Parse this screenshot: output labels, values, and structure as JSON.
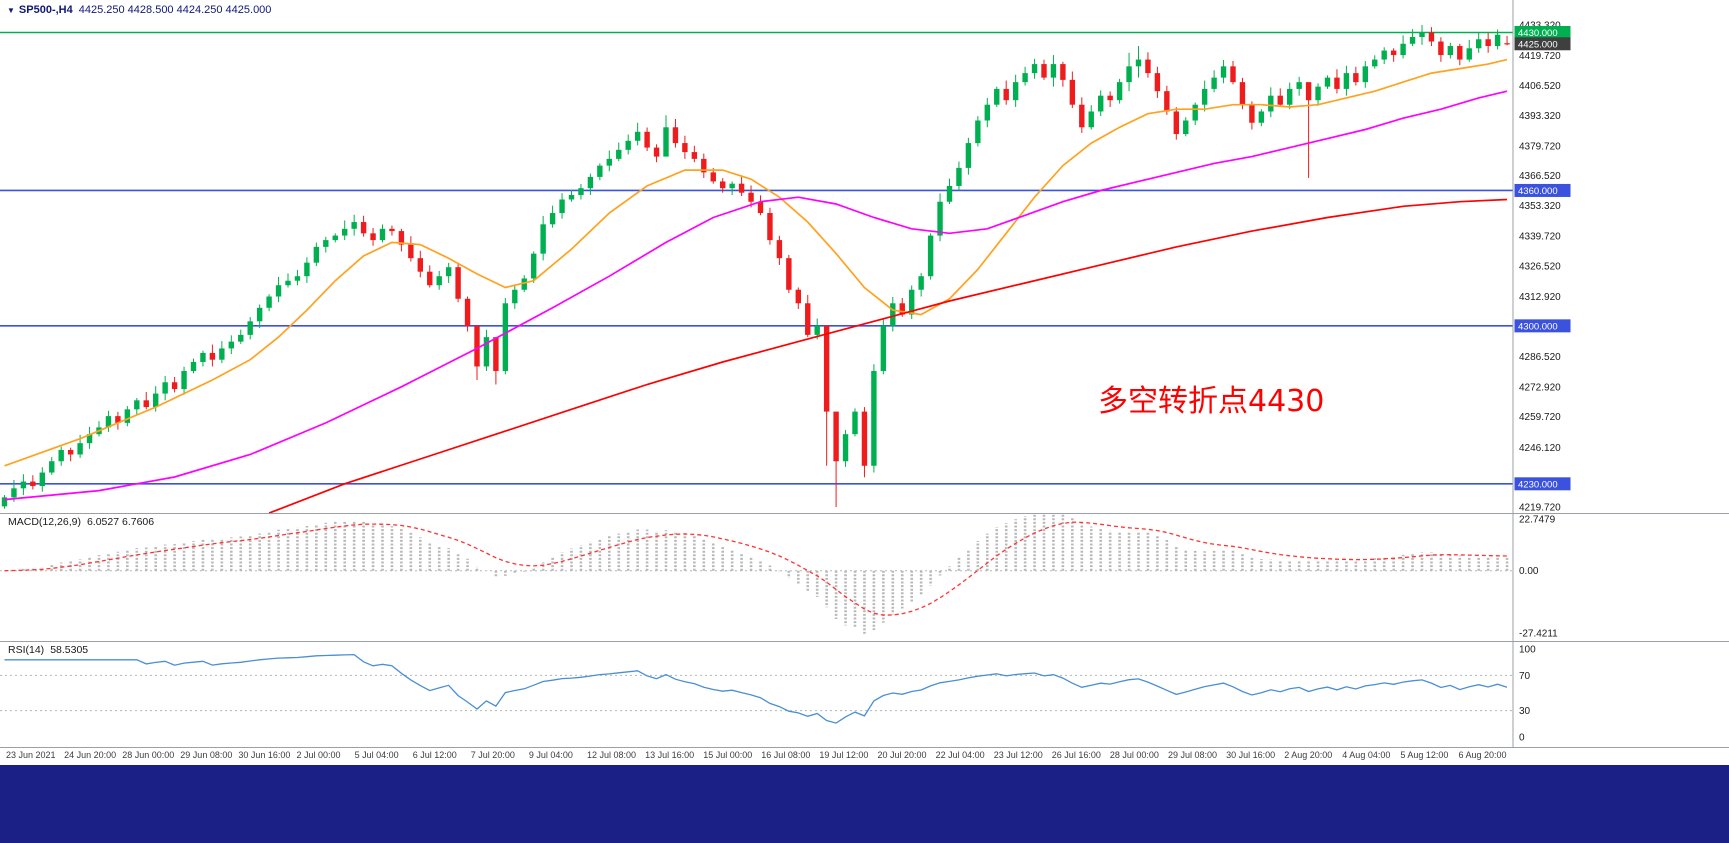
{
  "header": {
    "dropdown_icon": "▼",
    "symbol_period": "SP500-,H4",
    "ohlc": "4425.250 4428.500 4424.250 4425.000"
  },
  "indicators": {
    "macd_label": "MACD(12,26,9)",
    "macd_values": "6.0527 6.7606",
    "rsi_label": "RSI(14)",
    "rsi_value": "58.5305"
  },
  "annotation": {
    "text": "多空转折点4430",
    "color": "#ff0000"
  },
  "colors": {
    "up_candle": "#00b050",
    "down_candle": "#ee1c1c",
    "ma_fast": "#ffa21f",
    "ma_mid": "#ff00ff",
    "ma_slow": "#ff0000",
    "hline_blue": "#3a52dd",
    "hline_green": "#00b050",
    "macd_hist": "#b8b8b8",
    "macd_signal": "#ff3333",
    "rsi_line": "#4a8fd4",
    "axis_text": "#1a1a1a",
    "time_text": "#3c3c3c",
    "separator": "#9aa0a6",
    "badge_dark_bg": "#3f3f3f",
    "badge_text": "#ffffff",
    "level_dotted": "#b5b5b5",
    "bottom_bar_bg": "#1b2087"
  },
  "chart_data": {
    "type": "candlestick",
    "symbol": "SP500-",
    "timeframe": "H4",
    "title": "SP500-,H4",
    "first_open": 4220,
    "closes": [
      4224,
      4228,
      4231,
      4229,
      4235,
      4240,
      4245,
      4243,
      4248,
      4252,
      4255,
      4260,
      4257,
      4263,
      4267,
      4264,
      4270,
      4275,
      4272,
      4280,
      4284,
      4288,
      4285,
      4290,
      4293,
      4296,
      4302,
      4308,
      4313,
      4318,
      4320,
      4322,
      4328,
      4335,
      4338,
      4340,
      4343,
      4346,
      4341,
      4338,
      4343,
      4342,
      4336,
      4330,
      4324,
      4318,
      4322,
      4326,
      4312,
      4300,
      4282,
      4295,
      4280,
      4310,
      4316,
      4321,
      4332,
      4345,
      4350,
      4356,
      4358,
      4361,
      4366,
      4371,
      4374,
      4378,
      4382,
      4386,
      4379,
      4375,
      4388,
      4381,
      4377,
      4374,
      4368,
      4364,
      4361,
      4363,
      4359,
      4355,
      4350,
      4338,
      4330,
      4316,
      4310,
      4296,
      4300,
      4262,
      4240,
      4252,
      4262,
      4238,
      4280,
      4300,
      4310,
      4305,
      4316,
      4322,
      4340,
      4355,
      4362,
      4370,
      4381,
      4391,
      4398,
      4405,
      4400,
      4408,
      4412,
      4416,
      4410,
      4416,
      4409,
      4398,
      4388,
      4395,
      4402,
      4400,
      4408,
      4415,
      4418,
      4412,
      4404,
      4395,
      4385,
      4391,
      4398,
      4405,
      4410,
      4415,
      4408,
      4398,
      4390,
      4395,
      4402,
      4398,
      4405,
      4408,
      4400,
      4406,
      4410,
      4405,
      4412,
      4408,
      4415,
      4418,
      4422,
      4420,
      4425,
      4428,
      4430,
      4426,
      4420,
      4424,
      4418,
      4423,
      4427,
      4424,
      4429,
      4425
    ],
    "last_candle": {
      "open": 4425.25,
      "high": 4428.5,
      "low": 4424.25,
      "close": 4425.0
    },
    "wick_overrides": {
      "50": [
        4298,
        4276
      ],
      "52": [
        4292,
        4274
      ],
      "67": [
        4390,
        4380
      ],
      "70": [
        4393.3,
        4378
      ],
      "87": [
        4292,
        4238
      ],
      "88": [
        4256,
        4219.7
      ],
      "91": [
        4264,
        4232.9
      ],
      "92": [
        4283,
        4235
      ],
      "104": [
        4401,
        4388
      ],
      "111": [
        4420,
        4406
      ],
      "119": [
        4421,
        4404
      ],
      "120": [
        4424,
        4410
      ],
      "138": [
        4402,
        4365.5
      ],
      "149": [
        4431.5,
        4424
      ],
      "150": [
        4433.3,
        4424.5
      ]
    },
    "hlines": [
      {
        "price": 4430.0,
        "style": "green"
      },
      {
        "price": 4360.0,
        "style": "blue"
      },
      {
        "price": 4300.0,
        "style": "blue"
      },
      {
        "price": 4230.0,
        "style": "blue"
      }
    ],
    "price_axis": {
      "ticks": [
        "4433.320",
        "4419.720",
        "4406.520",
        "4393.320",
        "4379.720",
        "4366.520",
        "4353.320",
        "4339.720",
        "4326.520",
        "4312.920",
        "4286.520",
        "4272.920",
        "4259.720",
        "4246.120",
        "4219.720"
      ],
      "badges": [
        {
          "text": "4430.000",
          "price": 4430.0,
          "style": "green"
        },
        {
          "text": "4425.000",
          "price": 4425.0,
          "style": "dark"
        },
        {
          "text": "4360.000",
          "price": 4360.0,
          "style": "blue"
        },
        {
          "text": "4300.000",
          "price": 4300.0,
          "style": "blue"
        },
        {
          "text": "4230.000",
          "price": 4230.0,
          "style": "blue"
        }
      ]
    },
    "moving_averages": [
      {
        "name": "ma-fast-orange",
        "color_key": "ma_fast",
        "anchors": [
          [
            0,
            4238
          ],
          [
            8,
            4250
          ],
          [
            16,
            4264
          ],
          [
            22,
            4276
          ],
          [
            26,
            4285
          ],
          [
            29,
            4295
          ],
          [
            32,
            4307
          ],
          [
            35,
            4320
          ],
          [
            38,
            4331
          ],
          [
            41,
            4337
          ],
          [
            44,
            4336
          ],
          [
            47,
            4330
          ],
          [
            50,
            4323
          ],
          [
            53,
            4317
          ],
          [
            56,
            4320
          ],
          [
            60,
            4334
          ],
          [
            64,
            4350
          ],
          [
            68,
            4362
          ],
          [
            72,
            4369
          ],
          [
            76,
            4369
          ],
          [
            79,
            4365
          ],
          [
            82,
            4357
          ],
          [
            85,
            4346
          ],
          [
            88,
            4332
          ],
          [
            91,
            4317
          ],
          [
            94,
            4307
          ],
          [
            97,
            4305
          ],
          [
            100,
            4312
          ],
          [
            103,
            4325
          ],
          [
            106,
            4341
          ],
          [
            109,
            4357
          ],
          [
            112,
            4371
          ],
          [
            115,
            4381
          ],
          [
            118,
            4388
          ],
          [
            121,
            4394
          ],
          [
            124,
            4396
          ],
          [
            127,
            4396
          ],
          [
            130,
            4398
          ],
          [
            133,
            4398
          ],
          [
            136,
            4397
          ],
          [
            139,
            4398
          ],
          [
            142,
            4401
          ],
          [
            145,
            4404
          ],
          [
            148,
            4408
          ],
          [
            151,
            4412
          ],
          [
            154,
            4414
          ],
          [
            157,
            4416
          ],
          [
            159,
            4418
          ]
        ]
      },
      {
        "name": "ma-mid-magenta",
        "color_key": "ma_mid",
        "anchors": [
          [
            0,
            4223
          ],
          [
            10,
            4227
          ],
          [
            18,
            4233
          ],
          [
            26,
            4243
          ],
          [
            34,
            4257
          ],
          [
            42,
            4273
          ],
          [
            50,
            4290
          ],
          [
            58,
            4308
          ],
          [
            64,
            4322
          ],
          [
            70,
            4337
          ],
          [
            75,
            4348
          ],
          [
            80,
            4355
          ],
          [
            84,
            4357
          ],
          [
            88,
            4354
          ],
          [
            92,
            4348
          ],
          [
            96,
            4343
          ],
          [
            100,
            4341
          ],
          [
            104,
            4343
          ],
          [
            108,
            4349
          ],
          [
            112,
            4355
          ],
          [
            116,
            4360
          ],
          [
            120,
            4364
          ],
          [
            124,
            4368
          ],
          [
            128,
            4372
          ],
          [
            132,
            4375
          ],
          [
            136,
            4379
          ],
          [
            140,
            4383
          ],
          [
            144,
            4387
          ],
          [
            148,
            4392
          ],
          [
            152,
            4396
          ],
          [
            156,
            4401
          ],
          [
            159,
            4404
          ]
        ]
      },
      {
        "name": "ma-slow-red",
        "color_key": "ma_slow",
        "anchors": [
          [
            28,
            4217
          ],
          [
            36,
            4230
          ],
          [
            44,
            4241
          ],
          [
            52,
            4252
          ],
          [
            60,
            4263
          ],
          [
            68,
            4274
          ],
          [
            76,
            4284
          ],
          [
            84,
            4293
          ],
          [
            92,
            4302
          ],
          [
            100,
            4311
          ],
          [
            108,
            4319
          ],
          [
            116,
            4327
          ],
          [
            124,
            4335
          ],
          [
            132,
            4342
          ],
          [
            140,
            4348
          ],
          [
            148,
            4353
          ],
          [
            154,
            4355
          ],
          [
            159,
            4356
          ]
        ]
      }
    ],
    "macd": {
      "title": "MACD(12,26,9)",
      "values_text": "6.0527 6.7606",
      "params": [
        12,
        26,
        9
      ],
      "axis_ticks": [
        "22.7479",
        "0.00",
        "-27.4211"
      ],
      "axis_max": 22.7479,
      "axis_min": -27.4211
    },
    "rsi": {
      "title": "RSI(14)",
      "value_text": "58.5305",
      "period": 14,
      "axis_ticks": [
        "100",
        "70",
        "30",
        "0"
      ],
      "levels": [
        70,
        30
      ]
    },
    "time_labels": [
      "23 Jun 2021",
      "24 Jun 20:00",
      "28 Jun 00:00",
      "29 Jun 08:00",
      "30 Jun 16:00",
      "2 Jul 00:00",
      "5 Jul 04:00",
      "6 Jul 12:00",
      "7 Jul 20:00",
      "9 Jul 04:00",
      "12 Jul 08:00",
      "13 Jul 16:00",
      "15 Jul 00:00",
      "16 Jul 08:00",
      "19 Jul 12:00",
      "20 Jul 20:00",
      "22 Jul 04:00",
      "23 Jul 12:00",
      "26 Jul 16:00",
      "28 Jul 00:00",
      "29 Jul 08:00",
      "30 Jul 16:00",
      "2 Aug 20:00",
      "4 Aug 04:00",
      "5 Aug 12:00",
      "6 Aug 20:00"
    ]
  }
}
